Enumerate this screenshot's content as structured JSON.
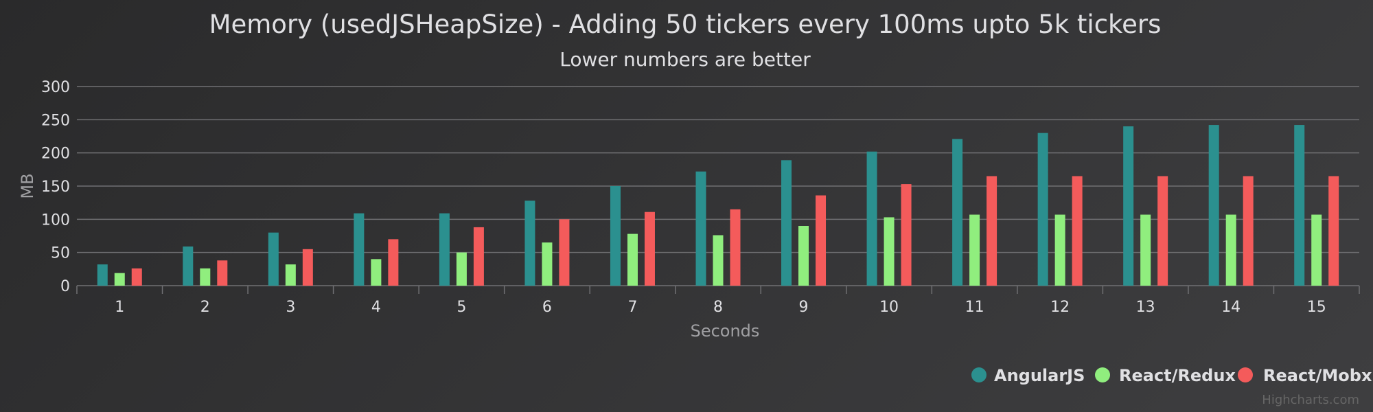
{
  "chart_data": {
    "type": "bar",
    "title": "Memory (usedJSHeapSize) - Adding 50 tickers every 100ms upto 5k tickers",
    "subtitle": "Lower numbers are better",
    "xlabel": "Seconds",
    "ylabel": "MB",
    "ylim": [
      0,
      300
    ],
    "yticks": [
      0,
      50,
      100,
      150,
      200,
      250,
      300
    ],
    "grid": true,
    "legend_position": "bottom-right",
    "categories": [
      "1",
      "2",
      "3",
      "4",
      "5",
      "6",
      "7",
      "8",
      "9",
      "10",
      "11",
      "12",
      "13",
      "14",
      "15"
    ],
    "series": [
      {
        "name": "AngularJS",
        "color": "#2b908f",
        "values": [
          32,
          59,
          80,
          109,
          109,
          128,
          150,
          172,
          189,
          202,
          221,
          230,
          240,
          242,
          242
        ]
      },
      {
        "name": "React/Redux",
        "color": "#90ee7e",
        "values": [
          19,
          26,
          32,
          40,
          50,
          65,
          78,
          76,
          90,
          103,
          107,
          107,
          107,
          107,
          107
        ]
      },
      {
        "name": "React/Mobx",
        "color": "#f45b5b",
        "values": [
          26,
          38,
          55,
          70,
          88,
          100,
          111,
          115,
          136,
          153,
          165,
          165,
          165,
          165,
          165
        ]
      }
    ],
    "credits": "Highcharts.com"
  }
}
